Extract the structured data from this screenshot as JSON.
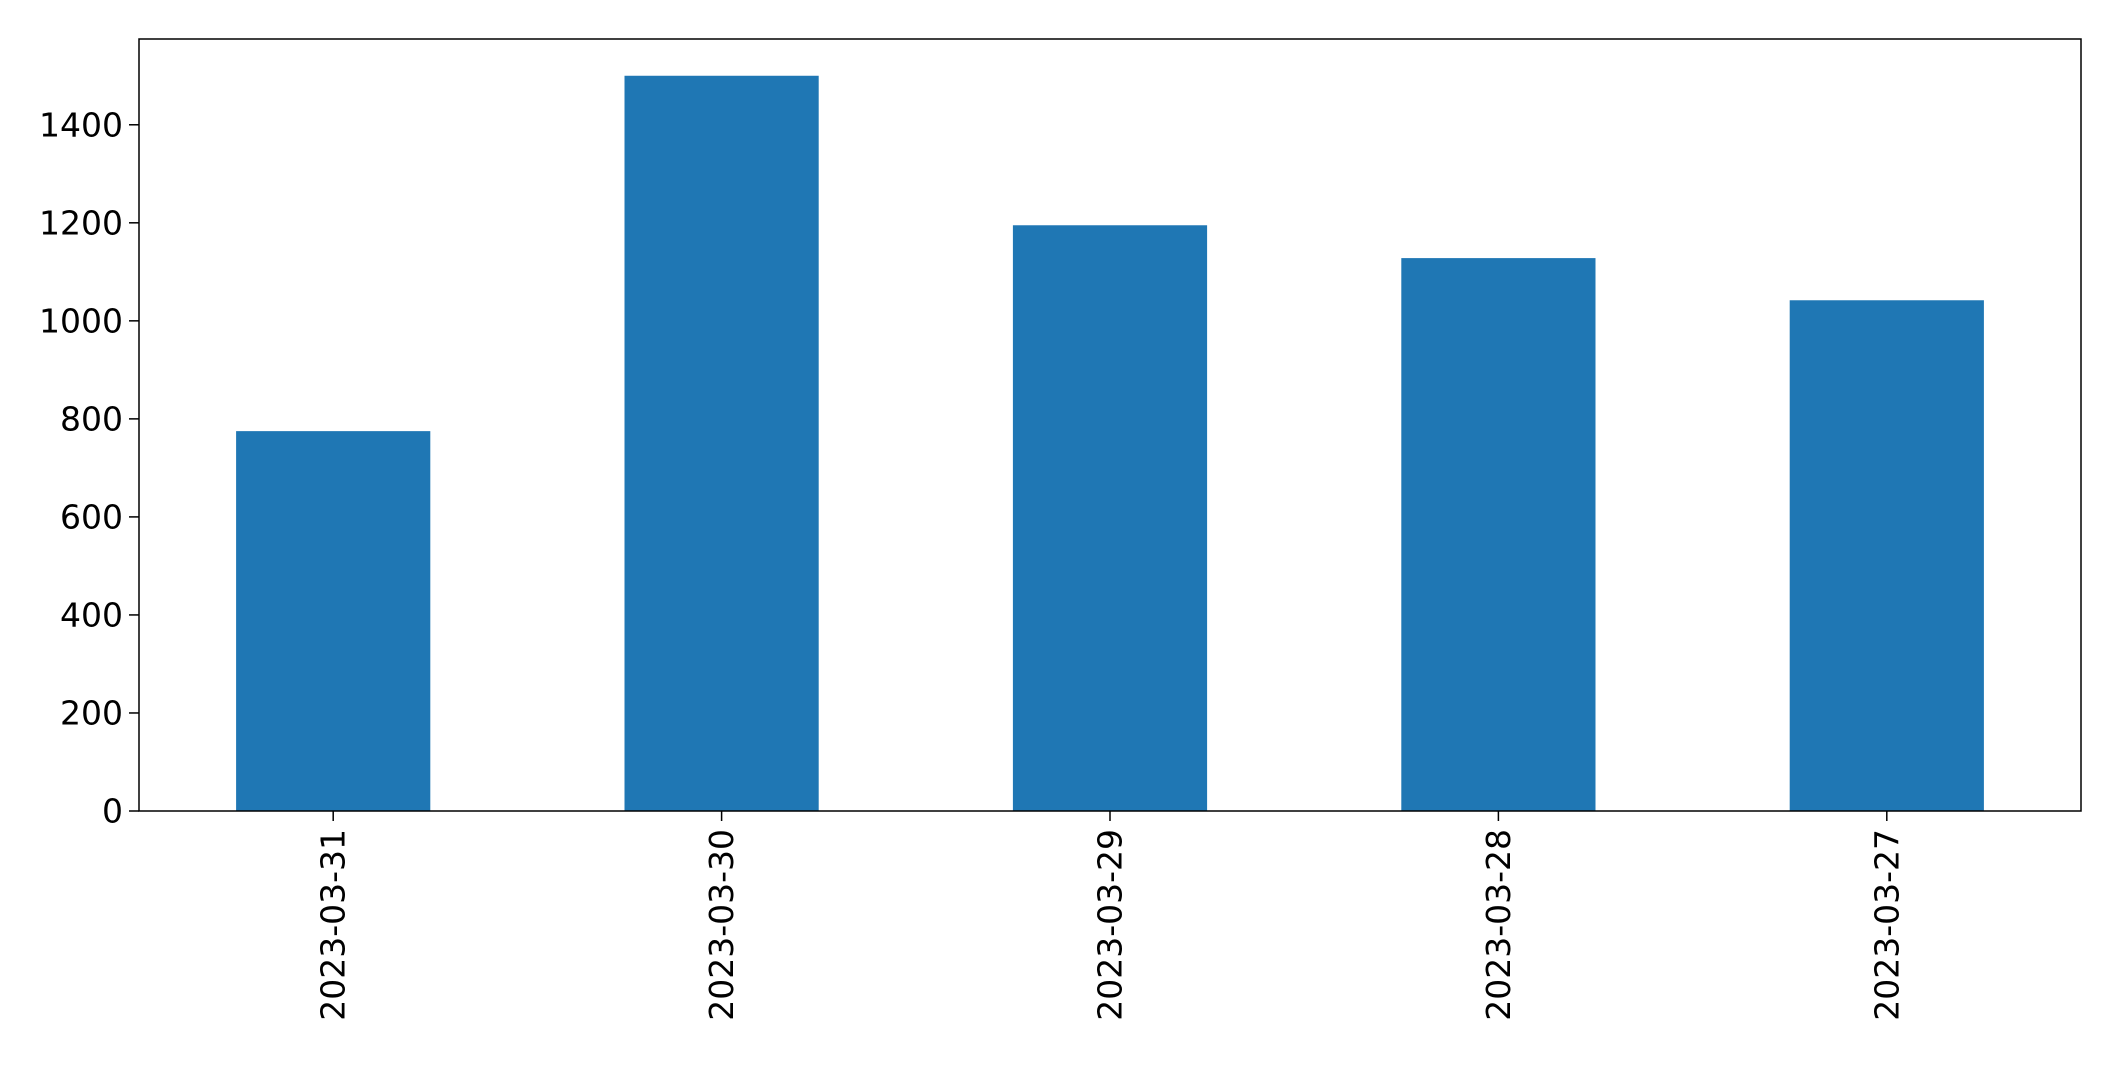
{
  "chart_data": {
    "type": "bar",
    "title": "",
    "xlabel": "",
    "ylabel": "",
    "categories": [
      "2023-03-31",
      "2023-03-30",
      "2023-03-29",
      "2023-03-28",
      "2023-03-27"
    ],
    "values": [
      775,
      1500,
      1195,
      1128,
      1042
    ],
    "ylim": [
      0,
      1575
    ],
    "yticks": [
      0,
      200,
      400,
      600,
      800,
      1000,
      1200,
      1400
    ],
    "ytick_labels": [
      "0",
      "200",
      "400",
      "600",
      "800",
      "1000",
      "1200",
      "1400"
    ],
    "bar_color": "#1f77b4",
    "grid": false,
    "legend": "none",
    "x_tick_rotation": "vertical"
  }
}
